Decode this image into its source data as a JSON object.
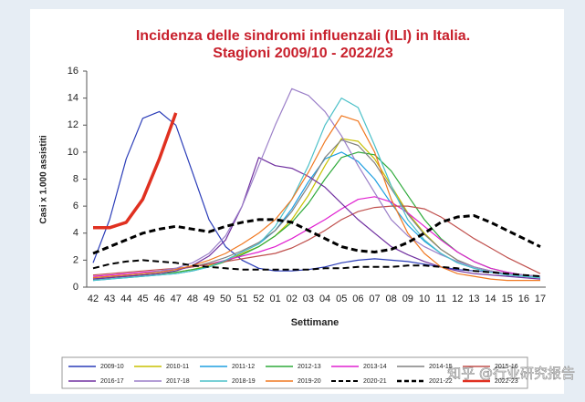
{
  "chart_data": {
    "type": "line",
    "title": "Incidenza delle sindromi influenzali (ILI) in Italia.",
    "subtitle": "Stagioni 2009/10 - 2022/23",
    "y_label": "Casi x 1.000 assistiti",
    "x_label": "Settimane",
    "categories": [
      "42",
      "43",
      "44",
      "45",
      "46",
      "47",
      "48",
      "49",
      "50",
      "51",
      "52",
      "01",
      "02",
      "03",
      "04",
      "05",
      "06",
      "07",
      "08",
      "09",
      "10",
      "11",
      "12",
      "13",
      "14",
      "15",
      "16",
      "17"
    ],
    "ylim": [
      0,
      16
    ],
    "yticks": [
      0,
      2,
      4,
      6,
      8,
      10,
      12,
      14,
      16
    ],
    "grid": false,
    "legend": "bottom",
    "series": [
      {
        "name": "2009-10",
        "color": "#2a3cb8",
        "values": [
          1.8,
          5,
          9.5,
          12.5,
          13,
          12,
          8.5,
          5,
          3,
          2,
          1.4,
          1.2,
          1.2,
          1.3,
          1.5,
          1.8,
          2,
          2.1,
          2,
          1.9,
          1.7,
          1.5,
          1.3,
          1.2,
          1.1,
          1,
          0.9,
          0.8
        ]
      },
      {
        "name": "2010-11",
        "color": "#c8c000",
        "values": [
          0.6,
          0.7,
          0.8,
          0.9,
          1,
          1.1,
          1.3,
          1.6,
          2,
          2.5,
          3,
          3.8,
          5,
          6.8,
          9,
          11,
          10.8,
          9.5,
          7.5,
          5.5,
          4,
          2.8,
          2,
          1.5,
          1.2,
          1,
          0.9,
          0.8
        ]
      },
      {
        "name": "2011-12",
        "color": "#1e9fe0",
        "values": [
          0.5,
          0.6,
          0.7,
          0.8,
          0.9,
          1,
          1.2,
          1.5,
          2,
          2.6,
          3.2,
          4.2,
          5.8,
          7.8,
          9.5,
          10,
          9.3,
          8,
          6.2,
          4.6,
          3.4,
          2.5,
          1.8,
          1.4,
          1.1,
          0.9,
          0.8,
          0.7
        ]
      },
      {
        "name": "2012-13",
        "color": "#2eaa3a",
        "values": [
          0.6,
          0.7,
          0.8,
          0.9,
          1,
          1.1,
          1.3,
          1.5,
          1.9,
          2.4,
          3,
          3.8,
          4.8,
          6.2,
          8,
          9.6,
          10,
          9.8,
          8.6,
          6.8,
          5,
          3.6,
          2.6,
          1.9,
          1.4,
          1.1,
          0.9,
          0.8
        ]
      },
      {
        "name": "2013-14",
        "color": "#e020d0",
        "values": [
          0.8,
          0.9,
          1,
          1.1,
          1.2,
          1.3,
          1.5,
          1.7,
          2,
          2.3,
          2.6,
          3,
          3.6,
          4.3,
          5,
          5.8,
          6.5,
          6.7,
          6.3,
          5.5,
          4.5,
          3.5,
          2.6,
          1.9,
          1.4,
          1.1,
          0.9,
          0.8
        ]
      },
      {
        "name": "2014-15",
        "color": "#808080",
        "values": [
          0.7,
          0.8,
          0.9,
          1,
          1.1,
          1.3,
          1.5,
          1.8,
          2.2,
          2.7,
          3.3,
          4.2,
          5.6,
          7.5,
          9.6,
          10.9,
          10.5,
          9.2,
          7.3,
          5.4,
          3.9,
          2.8,
          2,
          1.5,
          1.2,
          1,
          0.9,
          0.8
        ]
      },
      {
        "name": "2015-16",
        "color": "#c0504d",
        "values": [
          0.9,
          1,
          1.1,
          1.2,
          1.3,
          1.4,
          1.5,
          1.7,
          1.9,
          2.1,
          2.3,
          2.5,
          2.9,
          3.5,
          4.2,
          5,
          5.6,
          5.9,
          6,
          6,
          5.8,
          5.2,
          4.4,
          3.6,
          2.9,
          2.2,
          1.6,
          1
        ]
      },
      {
        "name": "2016-17",
        "color": "#7030a0",
        "values": [
          0.6,
          0.7,
          0.8,
          0.9,
          1,
          1.2,
          1.6,
          2.3,
          3.5,
          6,
          9.6,
          9,
          8.8,
          8.2,
          7.4,
          6.2,
          5,
          4,
          3,
          2.4,
          1.9,
          1.5,
          1.2,
          1,
          0.9,
          0.8,
          0.7,
          0.6
        ]
      },
      {
        "name": "2017-18",
        "color": "#9b7fc8",
        "values": [
          0.7,
          0.8,
          0.9,
          1,
          1.2,
          1.4,
          1.8,
          2.5,
          3.8,
          6,
          9,
          12,
          14.7,
          14.2,
          13,
          11.2,
          9,
          7,
          5,
          3.8,
          3,
          2.4,
          1.9,
          1.5,
          1.2,
          1,
          0.9,
          0.8
        ]
      },
      {
        "name": "2018-19",
        "color": "#4bc0c8",
        "values": [
          0.5,
          0.6,
          0.7,
          0.8,
          0.9,
          1,
          1.2,
          1.5,
          2,
          2.6,
          3.2,
          4.5,
          6.5,
          9,
          12,
          14,
          13.3,
          10.5,
          7.5,
          5,
          3.5,
          2.5,
          1.8,
          1.4,
          1.1,
          0.9,
          0.8,
          0.7
        ]
      },
      {
        "name": "2019-20",
        "color": "#f07820",
        "values": [
          0.7,
          0.8,
          0.9,
          1,
          1.1,
          1.3,
          1.6,
          2,
          2.5,
          3.2,
          4,
          5,
          6.5,
          8.5,
          10.8,
          12.7,
          12.3,
          10,
          6.5,
          4,
          2.5,
          1.5,
          1,
          0.8,
          0.6,
          0.5,
          0.5,
          0.5
        ]
      },
      {
        "name": "2020-21",
        "color": "#000000",
        "dash": true,
        "width": 2,
        "values": [
          1.4,
          1.7,
          1.9,
          2,
          1.9,
          1.8,
          1.6,
          1.5,
          1.4,
          1.3,
          1.3,
          1.3,
          1.3,
          1.3,
          1.4,
          1.4,
          1.5,
          1.5,
          1.5,
          1.6,
          1.6,
          1.5,
          1.4,
          1.2,
          1.1,
          1,
          0.9,
          0.8
        ]
      },
      {
        "name": "2021-22",
        "color": "#000000",
        "dash": true,
        "width": 3,
        "values": [
          2.5,
          3,
          3.5,
          4,
          4.3,
          4.5,
          4.3,
          4.1,
          4.5,
          4.8,
          5,
          5,
          4.8,
          4.2,
          3.6,
          3,
          2.7,
          2.6,
          2.8,
          3.3,
          4,
          4.8,
          5.2,
          5.3,
          4.8,
          4.2,
          3.6,
          3
        ]
      },
      {
        "name": "2022-23",
        "color": "#e03020",
        "width": 3.5,
        "values": [
          4.4,
          4.4,
          4.8,
          6.5,
          9.5,
          12.9,
          null,
          null,
          null,
          null,
          null,
          null,
          null,
          null,
          null,
          null,
          null,
          null,
          null,
          null,
          null,
          null,
          null,
          null,
          null,
          null,
          null,
          null
        ]
      }
    ]
  },
  "watermark": "知乎 @行业研究报告"
}
